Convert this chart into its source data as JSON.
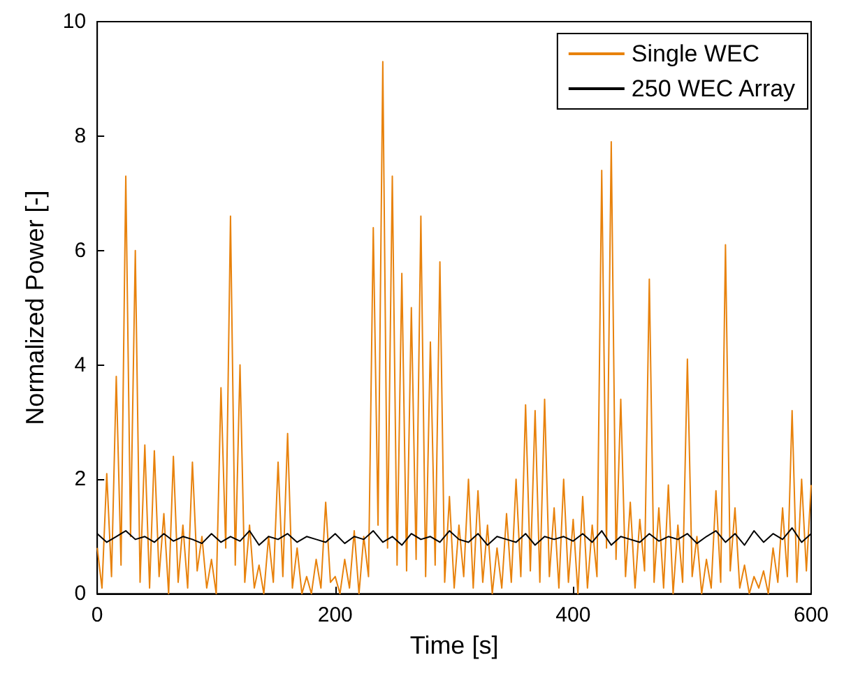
{
  "chart_data": {
    "type": "line",
    "xlabel": "Time [s]",
    "ylabel": "Normalized Power [-]",
    "xlim": [
      0,
      600
    ],
    "xticks": [
      0,
      200,
      400,
      600
    ],
    "ylim": [
      0,
      10
    ],
    "yticks": [
      0,
      2,
      4,
      6,
      8,
      10
    ],
    "legend": "top right",
    "marker": "none",
    "line_style": "solid",
    "series": [
      {
        "name": "Single WEC",
        "color": "#e8820c",
        "x": [
          0,
          4,
          8,
          12,
          16,
          20,
          24,
          28,
          32,
          36,
          40,
          44,
          48,
          52,
          56,
          60,
          64,
          68,
          72,
          76,
          80,
          84,
          88,
          92,
          96,
          100,
          104,
          108,
          112,
          116,
          120,
          124,
          128,
          132,
          136,
          140,
          144,
          148,
          152,
          156,
          160,
          164,
          168,
          172,
          176,
          180,
          184,
          188,
          192,
          196,
          200,
          204,
          208,
          212,
          216,
          220,
          224,
          228,
          232,
          236,
          240,
          244,
          248,
          252,
          256,
          260,
          264,
          268,
          272,
          276,
          280,
          284,
          288,
          292,
          296,
          300,
          304,
          308,
          312,
          316,
          320,
          324,
          328,
          332,
          336,
          340,
          344,
          348,
          352,
          356,
          360,
          364,
          368,
          372,
          376,
          380,
          384,
          388,
          392,
          396,
          400,
          404,
          408,
          412,
          416,
          420,
          424,
          428,
          432,
          436,
          440,
          444,
          448,
          452,
          456,
          460,
          464,
          468,
          472,
          476,
          480,
          484,
          488,
          492,
          496,
          500,
          504,
          508,
          512,
          516,
          520,
          524,
          528,
          532,
          536,
          540,
          544,
          548,
          552,
          556,
          560,
          564,
          568,
          572,
          576,
          580,
          584,
          588,
          592,
          596,
          600
        ],
        "values": [
          0.8,
          0.1,
          2.1,
          0.3,
          3.8,
          0.5,
          7.3,
          1.0,
          6.0,
          0.2,
          2.6,
          0.1,
          2.5,
          0.3,
          1.4,
          0.0,
          2.4,
          0.2,
          1.2,
          0.1,
          2.3,
          0.4,
          1.0,
          0.1,
          0.6,
          0.0,
          3.6,
          0.8,
          6.6,
          0.5,
          4.0,
          0.2,
          1.2,
          0.1,
          0.5,
          0.0,
          1.0,
          0.2,
          2.3,
          0.3,
          2.8,
          0.1,
          0.8,
          0.0,
          0.3,
          0.0,
          0.6,
          0.1,
          1.6,
          0.2,
          0.3,
          0.0,
          0.6,
          0.1,
          1.1,
          0.0,
          1.0,
          0.3,
          6.4,
          1.2,
          9.3,
          0.8,
          7.3,
          0.5,
          5.6,
          0.4,
          5.0,
          0.6,
          6.6,
          0.3,
          4.4,
          0.5,
          5.8,
          0.2,
          1.7,
          0.1,
          1.2,
          0.3,
          2.0,
          0.1,
          1.8,
          0.2,
          1.2,
          0.0,
          0.8,
          0.1,
          1.4,
          0.2,
          2.0,
          0.3,
          3.3,
          0.4,
          3.2,
          0.2,
          3.4,
          0.3,
          1.5,
          0.1,
          2.0,
          0.2,
          1.3,
          0.0,
          1.7,
          0.1,
          1.2,
          0.3,
          7.4,
          0.8,
          7.9,
          0.6,
          3.4,
          0.3,
          1.6,
          0.1,
          1.3,
          0.4,
          5.5,
          0.2,
          1.5,
          0.1,
          1.9,
          0.0,
          1.2,
          0.2,
          4.1,
          0.3,
          1.0,
          0.0,
          0.6,
          0.1,
          1.8,
          0.2,
          6.1,
          0.4,
          1.5,
          0.1,
          0.5,
          0.0,
          0.3,
          0.1,
          0.4,
          0.0,
          0.8,
          0.2,
          1.5,
          0.3,
          3.2,
          0.2,
          2.0,
          0.4,
          1.9
        ]
      },
      {
        "name": "250 WEC Array",
        "color": "#000000",
        "x": [
          0,
          8,
          16,
          24,
          32,
          40,
          48,
          56,
          64,
          72,
          80,
          88,
          96,
          104,
          112,
          120,
          128,
          136,
          144,
          152,
          160,
          168,
          176,
          184,
          192,
          200,
          208,
          216,
          224,
          232,
          240,
          248,
          256,
          264,
          272,
          280,
          288,
          296,
          304,
          312,
          320,
          328,
          336,
          344,
          352,
          360,
          368,
          376,
          384,
          392,
          400,
          408,
          416,
          424,
          432,
          440,
          448,
          456,
          464,
          472,
          480,
          488,
          496,
          504,
          512,
          520,
          528,
          536,
          544,
          552,
          560,
          568,
          576,
          584,
          592,
          600
        ],
        "values": [
          1.05,
          0.9,
          1.0,
          1.1,
          0.95,
          1.0,
          0.9,
          1.05,
          0.92,
          1.0,
          0.95,
          0.88,
          1.05,
          0.9,
          1.0,
          0.92,
          1.1,
          0.85,
          1.0,
          0.95,
          1.05,
          0.9,
          1.0,
          0.95,
          0.9,
          1.05,
          0.88,
          1.0,
          0.95,
          1.1,
          0.9,
          1.0,
          0.85,
          1.05,
          0.95,
          1.0,
          0.9,
          1.1,
          0.95,
          0.9,
          1.05,
          0.85,
          1.0,
          0.95,
          0.9,
          1.05,
          0.85,
          1.0,
          0.95,
          1.0,
          0.92,
          1.05,
          0.9,
          1.1,
          0.85,
          1.0,
          0.95,
          0.9,
          1.05,
          0.92,
          1.0,
          0.95,
          1.05,
          0.88,
          1.0,
          1.1,
          0.9,
          1.05,
          0.85,
          1.1,
          0.9,
          1.05,
          0.95,
          1.15,
          0.9,
          1.05
        ]
      }
    ]
  }
}
